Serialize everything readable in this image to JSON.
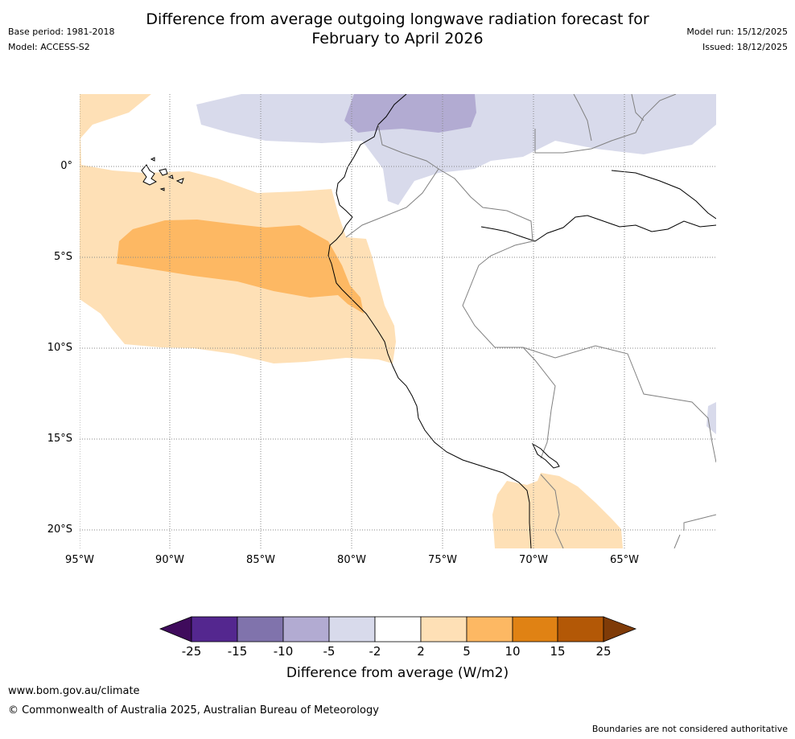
{
  "title": {
    "line1": "Difference from average outgoing longwave radiation forecast for",
    "line2": "February to April 2026"
  },
  "meta": {
    "base_period": "Base period: 1981-2018",
    "model": "Model: ACCESS-S2",
    "model_run": "Model run: 15/12/2025",
    "issued": "Issued: 18/12/2025"
  },
  "map": {
    "lat_labels": [
      "0°",
      "5°S",
      "10°S",
      "15°S",
      "20°S"
    ],
    "lon_labels": [
      "95°W",
      "90°W",
      "85°W",
      "80°W",
      "75°W",
      "70°W",
      "65°W"
    ]
  },
  "legend": {
    "ticks": [
      "-25",
      "-15",
      "-10",
      "-5",
      "-2",
      "2",
      "5",
      "10",
      "15",
      "25"
    ],
    "colors": [
      "#3f0b5c",
      "#54278f",
      "#8073ac",
      "#b2abd2",
      "#d8daeb",
      "#ffffff",
      "#fee0b6",
      "#fdb863",
      "#e08214",
      "#b35806",
      "#7f3b08"
    ],
    "label": "Difference from average (W/m2)"
  },
  "footer": {
    "website": "www.bom.gov.au/climate",
    "copyright": "© Commonwealth of Australia 2025, Australian Bureau of Meteorology",
    "disclaimer": "Boundaries are not considered authoritative"
  }
}
